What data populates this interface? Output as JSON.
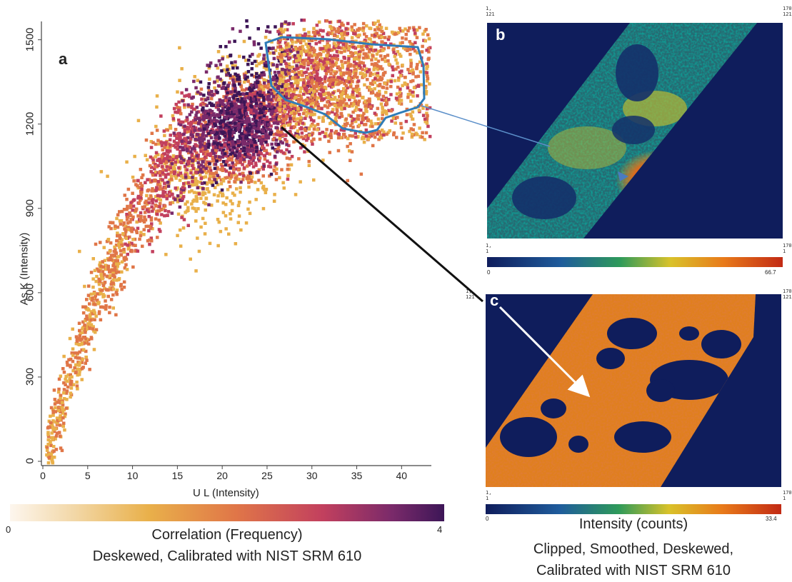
{
  "panels": {
    "a_label": "a",
    "b_label": "b",
    "c_label": "c"
  },
  "chart_data": {
    "type": "heatmap",
    "title": "",
    "xlabel": "U L (Intensity)",
    "ylabel": "As K (Intensity)",
    "xlim": [
      0,
      43
    ],
    "ylim": [
      0,
      1550
    ],
    "x_ticks": [
      "0",
      "5",
      "10",
      "15",
      "20",
      "25",
      "30",
      "35",
      "40"
    ],
    "y_ticks": [
      "0",
      "300",
      "600",
      "900",
      "1200",
      "1500"
    ],
    "x_tick_values": [
      0,
      5,
      10,
      15,
      20,
      25,
      30,
      35,
      40
    ],
    "y_tick_values": [
      0,
      300,
      600,
      900,
      1200,
      1500
    ],
    "density_center": {
      "x": 22,
      "y": 1180
    },
    "selection_region": {
      "x_range": [
        25.5,
        43
      ],
      "y_range": [
        1150,
        1510
      ]
    },
    "colorbar": {
      "min_label": "0",
      "max_label": "4",
      "min": 0,
      "max": 4,
      "colors": [
        "#fdf6ee",
        "#e9b04a",
        "#e07648",
        "#c2405e",
        "#7a2a6a",
        "#3d1657"
      ],
      "title": "Correlation (Frequency)",
      "subtitle": "Deskewed, Calibrated with NIST SRM 610"
    },
    "grid": false,
    "legend": "none"
  },
  "map_b": {
    "corner_top_left": "1,\n121",
    "corner_top_right": "170\n121",
    "corner_bottom_left": "1,\n1",
    "corner_bottom_right": "170\n1",
    "colorbar_min": "0",
    "colorbar_max": "66.7"
  },
  "map_c": {
    "corner_top_left": "1,\n121",
    "corner_top_right": "170\n121",
    "corner_bottom_left": "1,\n1",
    "corner_bottom_right": "170\n1",
    "colorbar_min": "0",
    "colorbar_max": "33.4"
  },
  "intensity_caption": {
    "title": "Intensity (counts)",
    "line1": "Clipped, Smoothed, Deskewed,",
    "line2": "Calibrated with NIST SRM 610"
  },
  "colors": {
    "map_background": "#0f1d5c",
    "outline": "#2e7cb8",
    "arrow_black": "#111111",
    "arrow_white": "#ffffff"
  }
}
